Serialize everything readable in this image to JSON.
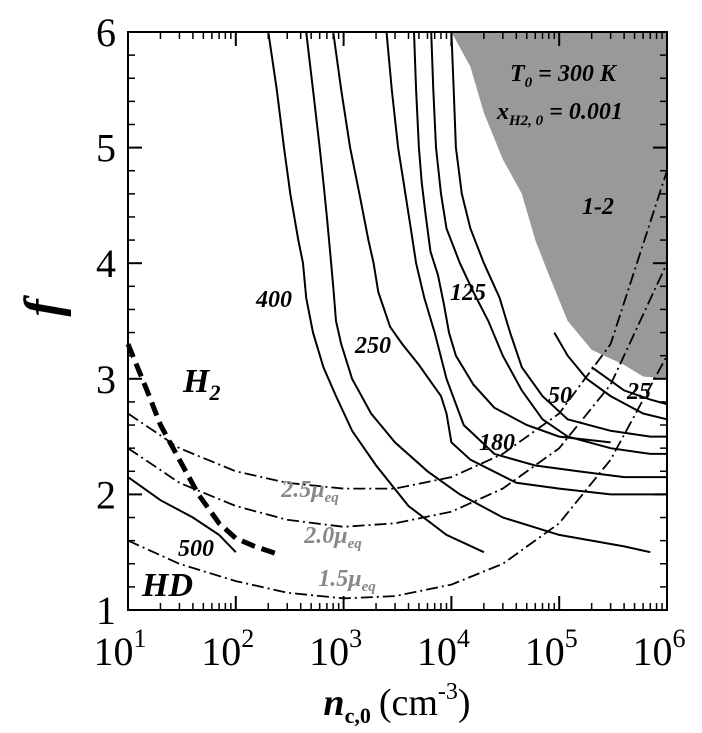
{
  "chart_data": {
    "type": "line",
    "xscale": "log",
    "xlim": [
      10,
      1000000
    ],
    "ylim": [
      1,
      6
    ],
    "xticks": [
      {
        "value": 10,
        "base": "10",
        "exp": "1"
      },
      {
        "value": 100,
        "base": "10",
        "exp": "2"
      },
      {
        "value": 1000,
        "base": "10",
        "exp": "3"
      },
      {
        "value": 10000,
        "base": "10",
        "exp": "4"
      },
      {
        "value": 100000,
        "base": "10",
        "exp": "5"
      },
      {
        "value": 1000000,
        "base": "10",
        "exp": "6"
      }
    ],
    "yticks": [
      "1",
      "2",
      "3",
      "4",
      "5",
      "6"
    ],
    "xlabel": {
      "main": "n",
      "sub": "c,0",
      "unit": "(cm",
      "unit_sup": "-3",
      "close": ")"
    },
    "ylabel": "f",
    "params": {
      "line1_main": "T",
      "line1_sub": "0",
      "line1_rest": " = 300 K",
      "line2_main": "x",
      "line2_sub": "H2, 0",
      "line2_rest": " = 0.001"
    },
    "region_labels": {
      "h2_main": "H",
      "h2_sub": "2",
      "hd": "HD"
    },
    "shaded_region": {
      "label": "1-2",
      "color": "#999999",
      "boundary": [
        [
          10000.0,
          6.0
        ],
        [
          15000.0,
          5.7
        ],
        [
          20000.0,
          5.3
        ],
        [
          30000.0,
          4.9
        ],
        [
          45000.0,
          4.6
        ],
        [
          60000.0,
          4.2
        ],
        [
          80000.0,
          3.9
        ],
        [
          120000.0,
          3.5
        ],
        [
          200000.0,
          3.25
        ],
        [
          400000.0,
          3.12
        ],
        [
          600000.0,
          3.02
        ],
        [
          1000000.0,
          3.0
        ]
      ]
    },
    "contours": [
      {
        "label": "500",
        "points": [
          [
            10,
            2.15
          ],
          [
            20,
            1.95
          ],
          [
            40,
            1.8
          ],
          [
            70,
            1.65
          ],
          [
            100,
            1.5
          ]
        ]
      },
      {
        "label": "400",
        "points": [
          [
            800,
            6.0
          ],
          [
            950,
            5.5
          ],
          [
            1150,
            5.0
          ],
          [
            1400,
            4.6
          ],
          [
            1700,
            4.2
          ],
          [
            1900,
            4.0
          ],
          [
            2100,
            3.75
          ],
          [
            2700,
            3.45
          ],
          [
            3500,
            3.3
          ],
          [
            5000,
            3.12
          ],
          [
            6500,
            2.97
          ],
          [
            8000,
            2.85
          ],
          [
            9000,
            2.7
          ],
          [
            10000,
            2.45
          ],
          [
            15000,
            2.3
          ],
          [
            40000,
            2.1
          ],
          [
            100000,
            2.05
          ],
          [
            300000,
            2.0
          ],
          [
            1000000,
            2.0
          ]
        ]
      },
      {
        "label": "250",
        "points": [
          [
            2500,
            6.0
          ],
          [
            2800,
            5.5
          ],
          [
            3200,
            5.0
          ],
          [
            3600,
            4.7
          ],
          [
            4200,
            4.3
          ],
          [
            4700,
            4.0
          ],
          [
            5600,
            3.7
          ],
          [
            7000,
            3.4
          ],
          [
            9000,
            3.0
          ],
          [
            13000,
            2.6
          ],
          [
            25000,
            2.35
          ],
          [
            60000,
            2.25
          ],
          [
            150000,
            2.2
          ],
          [
            400000,
            2.15
          ],
          [
            1000000,
            2.15
          ]
        ]
      },
      {
        "label": "180",
        "points": [
          [
            6500,
            6.0
          ],
          [
            6800,
            5.5
          ],
          [
            7200,
            5.0
          ],
          [
            8000,
            4.6
          ],
          [
            9000,
            4.3
          ],
          [
            12000,
            4.0
          ],
          [
            16000,
            3.75
          ],
          [
            22000,
            3.5
          ],
          [
            30000,
            3.2
          ],
          [
            45000,
            2.9
          ],
          [
            70000,
            2.65
          ],
          [
            120000,
            2.5
          ],
          [
            300000,
            2.4
          ],
          [
            700000,
            2.35
          ],
          [
            1000000,
            2.35
          ]
        ]
      },
      {
        "label": "125",
        "points": [
          [
            10000,
            6.0
          ],
          [
            10500,
            5.5
          ],
          [
            11000,
            5.0
          ],
          [
            12500,
            4.6
          ],
          [
            15000,
            4.3
          ],
          [
            20000,
            4.0
          ],
          [
            28000,
            3.7
          ],
          [
            35000,
            3.4
          ],
          [
            45000,
            3.1
          ],
          [
            70000,
            2.85
          ],
          [
            120000,
            2.65
          ],
          [
            300000,
            2.55
          ],
          [
            700000,
            2.5
          ],
          [
            1000000,
            2.5
          ]
        ]
      },
      {
        "label": "50",
        "points": [
          [
            90000,
            3.4
          ],
          [
            120000,
            3.2
          ],
          [
            180000,
            3.0
          ],
          [
            300000,
            2.85
          ],
          [
            600000,
            2.7
          ],
          [
            1000000,
            2.65
          ]
        ]
      },
      {
        "label": "25",
        "points": [
          [
            200000,
            3.1
          ],
          [
            400000,
            2.9
          ],
          [
            700000,
            2.82
          ],
          [
            1000000,
            2.78
          ]
        ]
      },
      {
        "label": "",
        "points": [
          [
            450,
            6.0
          ],
          [
            520,
            5.5
          ],
          [
            600,
            5.0
          ],
          [
            650,
            4.7
          ],
          [
            700,
            4.4
          ],
          [
            750,
            4.1
          ],
          [
            800,
            3.8
          ],
          [
            850,
            3.5
          ],
          [
            950,
            3.3
          ],
          [
            1200,
            3.0
          ],
          [
            1800,
            2.7
          ],
          [
            3000,
            2.45
          ],
          [
            6000,
            2.2
          ],
          [
            12000,
            2.0
          ],
          [
            30000,
            1.8
          ],
          [
            100000,
            1.65
          ],
          [
            400000,
            1.55
          ],
          [
            700000,
            1.5
          ]
        ]
      },
      {
        "label": "",
        "points": [
          [
            200,
            6.0
          ],
          [
            240,
            5.5
          ],
          [
            280,
            5.0
          ],
          [
            320,
            4.6
          ],
          [
            380,
            4.2
          ],
          [
            420,
            4.0
          ],
          [
            450,
            3.7
          ],
          [
            520,
            3.4
          ],
          [
            650,
            3.1
          ],
          [
            850,
            2.85
          ],
          [
            1200,
            2.55
          ],
          [
            2000,
            2.25
          ],
          [
            4000,
            1.9
          ],
          [
            9000,
            1.65
          ],
          [
            20000,
            1.5
          ]
        ]
      },
      {
        "label": "",
        "points": [
          [
            4500,
            6.0
          ],
          [
            4700,
            5.5
          ],
          [
            5000,
            5.0
          ],
          [
            5300,
            4.7
          ],
          [
            5800,
            4.4
          ],
          [
            6400,
            4.1
          ],
          [
            7500,
            3.9
          ],
          [
            8500,
            3.65
          ],
          [
            9500,
            3.4
          ],
          [
            11000,
            3.2
          ],
          [
            16000,
            2.95
          ],
          [
            25000,
            2.75
          ],
          [
            50000,
            2.6
          ],
          [
            100000,
            2.5
          ],
          [
            300000,
            2.45
          ]
        ]
      }
    ],
    "mu_curves": [
      {
        "label_main": "2.5",
        "label_mu": "μ",
        "label_sub": "eq",
        "points": [
          [
            10,
            2.7
          ],
          [
            30,
            2.4
          ],
          [
            100,
            2.2
          ],
          [
            300,
            2.1
          ],
          [
            1000,
            2.05
          ],
          [
            3000,
            2.05
          ],
          [
            10000,
            2.15
          ],
          [
            30000,
            2.35
          ],
          [
            100000,
            2.7
          ],
          [
            300000,
            3.3
          ],
          [
            1000000,
            4.8
          ]
        ]
      },
      {
        "label_main": "2.0",
        "label_mu": "μ",
        "label_sub": "eq",
        "points": [
          [
            10,
            2.4
          ],
          [
            30,
            2.1
          ],
          [
            100,
            1.9
          ],
          [
            300,
            1.78
          ],
          [
            1000,
            1.72
          ],
          [
            3000,
            1.75
          ],
          [
            10000,
            1.85
          ],
          [
            30000,
            2.05
          ],
          [
            100000,
            2.4
          ],
          [
            300000,
            2.95
          ],
          [
            1000000,
            4.0
          ]
        ]
      },
      {
        "label_main": "1.5",
        "label_mu": "μ",
        "label_sub": "eq",
        "points": [
          [
            10,
            1.6
          ],
          [
            30,
            1.4
          ],
          [
            100,
            1.25
          ],
          [
            300,
            1.15
          ],
          [
            1000,
            1.1
          ],
          [
            3000,
            1.12
          ],
          [
            10000,
            1.22
          ],
          [
            30000,
            1.4
          ],
          [
            100000,
            1.75
          ],
          [
            300000,
            2.3
          ],
          [
            1000000,
            3.2
          ]
        ]
      }
    ],
    "dashed_boundary": {
      "points": [
        [
          10,
          3.3
        ],
        [
          15,
          2.9
        ],
        [
          20,
          2.6
        ],
        [
          30,
          2.3
        ],
        [
          45,
          2.0
        ],
        [
          70,
          1.75
        ],
        [
          100,
          1.62
        ],
        [
          150,
          1.55
        ],
        [
          250,
          1.48
        ]
      ]
    }
  }
}
